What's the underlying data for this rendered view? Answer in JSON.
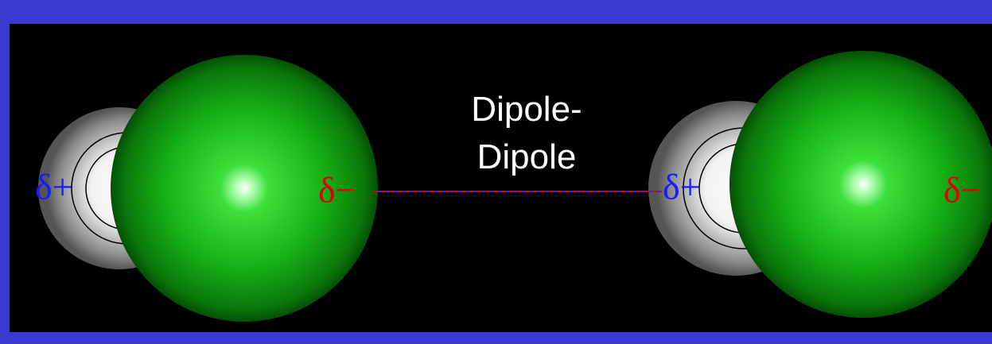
{
  "caption": {
    "line1": "Dipole-",
    "line2": "Dipole"
  },
  "molecules": [
    {
      "positive": "δ+",
      "negative": "δ−"
    },
    {
      "positive": "δ+",
      "negative": "δ−"
    }
  ]
}
